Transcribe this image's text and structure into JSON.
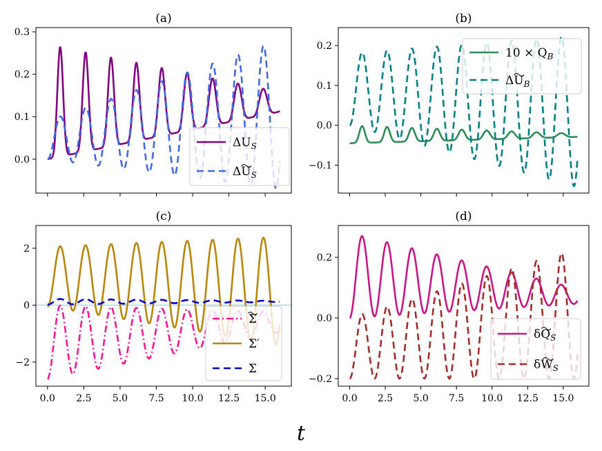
{
  "figure": {
    "xlabel": "t"
  },
  "chart_data": [
    {
      "type": "line",
      "title": "(a)",
      "xlim": [
        -0.8,
        16.8
      ],
      "ylim": [
        -0.08,
        0.31
      ],
      "xticks": [
        0,
        2.5,
        5,
        7.5,
        10,
        12.5,
        15
      ],
      "yticks": [
        0.0,
        0.1,
        0.2,
        0.3
      ],
      "ytick_labels": [
        "0.0",
        "0.1",
        "0.2",
        "0.3"
      ],
      "show_xtick_labels": false,
      "legend": "lower-right",
      "series": [
        {
          "name": "ΔU_S",
          "label_main": "ΔU",
          "label_sub": "S",
          "label_tilde": false,
          "color": "#800080",
          "dash": "solid",
          "model": {
            "period": 1.75,
            "base_start": 0.135,
            "base_end": 0.135,
            "amp_start": 0.135,
            "amp_end": 0.023,
            "k_start": 4,
            "k_end": 2
          }
        },
        {
          "name": "ΔŨ_S",
          "label_main": "ΔU",
          "label_sub": "S",
          "label_tilde": true,
          "color": "#4169e1",
          "dash": "dashed",
          "model": {
            "period": 1.75,
            "base_start": 0.045,
            "base_end": 0.105,
            "amp_start": 0.045,
            "amp_end": 0.175,
            "k_start": 1,
            "k_end": 1
          }
        }
      ]
    },
    {
      "type": "line",
      "title": "(b)",
      "xlim": [
        -0.8,
        16.8
      ],
      "ylim": [
        -0.17,
        0.245
      ],
      "xticks": [
        0,
        2.5,
        5,
        7.5,
        10,
        12.5,
        15
      ],
      "yticks": [
        -0.1,
        0.0,
        0.1,
        0.2
      ],
      "ytick_labels": [
        "−0.1",
        "0.0",
        "0.1",
        "0.2"
      ],
      "show_xtick_labels": false,
      "legend": "top-right",
      "series": [
        {
          "name": "10 × Q_B",
          "label_main": "10 × Q",
          "label_sub": "B",
          "label_tilde": false,
          "color": "#2e8b57",
          "dash": "solid",
          "model": {
            "period": 1.75,
            "base_start": -0.023,
            "base_end": -0.025,
            "amp_start": 0.022,
            "amp_end": 0.004,
            "k_start": 4,
            "k_end": 2
          }
        },
        {
          "name": "ΔŨ_B",
          "label_main": "ΔU",
          "label_sub": "B",
          "label_tilde": true,
          "color": "#008080",
          "dash": "dashed",
          "model": {
            "period": 1.75,
            "base_start": 0.09,
            "base_end": 0.035,
            "amp_start": 0.09,
            "amp_end": 0.19,
            "k_start": 1,
            "k_end": 1
          }
        }
      ]
    },
    {
      "type": "line",
      "title": "(c)",
      "xlim": [
        -0.8,
        16.8
      ],
      "ylim": [
        -2.85,
        2.8
      ],
      "xticks": [
        0,
        2.5,
        5,
        7.5,
        10,
        12.5,
        15
      ],
      "xtick_labels": [
        "0.0",
        "2.5",
        "5.0",
        "7.5",
        "10.0",
        "12.5",
        "15.0"
      ],
      "yticks": [
        -2,
        0,
        2
      ],
      "ytick_labels": [
        "−2",
        "0",
        "2"
      ],
      "show_xtick_labels": true,
      "hline": {
        "y": 0,
        "color": "#add8e6"
      },
      "legend": "lower-right",
      "series": [
        {
          "name": "Σ̃",
          "label_main": "Σ",
          "label_sub": "",
          "label_tilde": true,
          "color": "#ff1493",
          "dash": "dashdot",
          "model": {
            "period": 1.75,
            "base_start": -1.3,
            "base_end": -0.6,
            "amp_start": 1.3,
            "amp_end": 0.35,
            "k_start": 1,
            "k_end": 1
          }
        },
        {
          "name": "Σ′",
          "label_main": "Σ′",
          "label_sub": "",
          "label_tilde": false,
          "color": "#b8860b",
          "dash": "solid",
          "model": {
            "period": 1.75,
            "base_start": 1.0,
            "base_end": 0.5,
            "amp_start": 1.05,
            "amp_end": 1.9,
            "k_start": 1,
            "k_end": 1
          }
        },
        {
          "name": "Σ",
          "label_main": "Σ",
          "label_sub": "",
          "label_tilde": false,
          "color": "#0000cd",
          "dash": "dashed",
          "model": {
            "period": 1.75,
            "base_start": 0.12,
            "base_end": 0.13,
            "amp_start": 0.1,
            "amp_end": 0.02,
            "k_start": 1,
            "k_end": 1
          }
        }
      ]
    },
    {
      "type": "line",
      "title": "(d)",
      "xlim": [
        -0.8,
        16.8
      ],
      "ylim": [
        -0.225,
        0.305
      ],
      "xticks": [
        0,
        2.5,
        5,
        7.5,
        10,
        12.5,
        15
      ],
      "xtick_labels": [
        "0.0",
        "2.5",
        "5.0",
        "7.5",
        "10.0",
        "12.5",
        "15.0"
      ],
      "yticks": [
        -0.2,
        0.0,
        0.2
      ],
      "ytick_labels": [
        "−0.2",
        "0.0",
        "0.2"
      ],
      "show_xtick_labels": true,
      "legend": "lower-right",
      "series": [
        {
          "name": "δQ̃_S",
          "label_main": "δQ",
          "label_sub": "S",
          "label_tilde": true,
          "color": "#c71585",
          "dash": "solid",
          "model": {
            "period": 1.75,
            "base_start": 0.14,
            "base_end": 0.072,
            "amp_start": 0.14,
            "amp_end": 0.025,
            "k_start": 1,
            "k_end": 1
          }
        },
        {
          "name": "δW̃_S",
          "label_main": "δW",
          "label_sub": "S",
          "label_tilde": true,
          "color": "#a52a2a",
          "dash": "dashed",
          "model": {
            "period": 1.75,
            "base_start": -0.1,
            "base_end": 0.015,
            "amp_start": 0.1,
            "amp_end": 0.215,
            "k_start": 1,
            "k_end": 1
          }
        }
      ]
    }
  ]
}
